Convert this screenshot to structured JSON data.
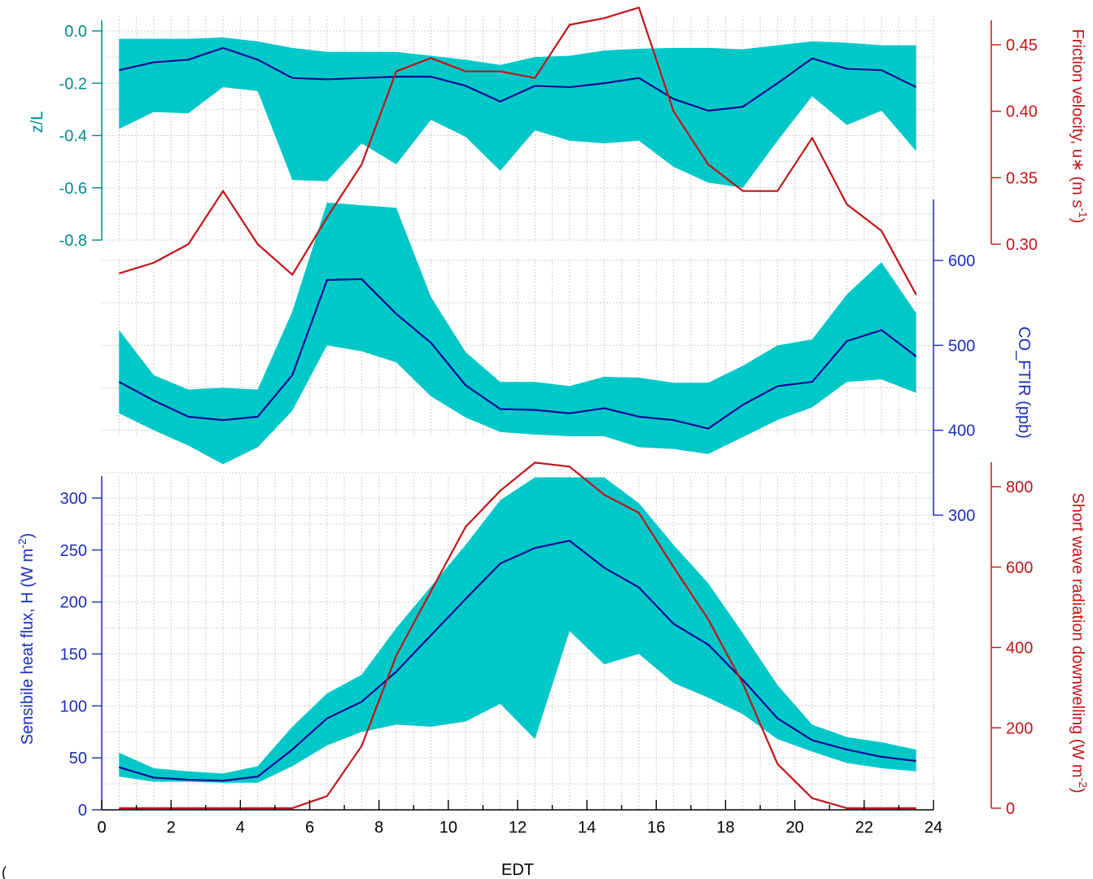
{
  "chart_data": [
    {
      "id": "zl_panel",
      "type": "line",
      "title": "",
      "xlabel": "EDT",
      "xlim": [
        0,
        24
      ],
      "left_axis": {
        "label": "z/L",
        "ylim": [
          -0.8,
          0.05
        ],
        "ticks": [
          0.0,
          -0.2,
          -0.4,
          -0.6,
          -0.8
        ],
        "tick_labels": [
          "0.0",
          "-0.2",
          "-0.4",
          "-0.6",
          "-0.8"
        ],
        "color": "#008c8c"
      },
      "right_axis": {
        "label": "Friction velocity, u* (m s⁻¹)",
        "label_main": "Friction velocity, u∗ (m s",
        "label_sup": "-1",
        "label_end": ")",
        "ylim": [
          0.262,
          0.48
        ],
        "ticks": [
          0.3,
          0.35,
          0.4,
          0.45
        ],
        "tick_labels": [
          "0.30",
          "0.35",
          "0.40",
          "0.45"
        ],
        "color": "#c0161a"
      },
      "x": [
        0.5,
        1.5,
        2.5,
        3.5,
        4.5,
        5.5,
        6.5,
        7.5,
        8.5,
        9.5,
        10.5,
        11.5,
        12.5,
        13.5,
        14.5,
        15.5,
        16.5,
        17.5,
        18.5,
        19.5,
        20.5,
        21.5,
        22.5,
        23.5
      ],
      "band": {
        "axis": "left",
        "color": "#00c8c8",
        "upper": [
          -0.03,
          -0.03,
          -0.03,
          -0.025,
          -0.04,
          -0.065,
          -0.08,
          -0.08,
          -0.08,
          -0.095,
          -0.11,
          -0.13,
          -0.1,
          -0.095,
          -0.075,
          -0.068,
          -0.065,
          -0.065,
          -0.07,
          -0.055,
          -0.04,
          -0.045,
          -0.055,
          -0.055
        ],
        "lower": [
          -0.375,
          -0.31,
          -0.315,
          -0.215,
          -0.23,
          -0.57,
          -0.575,
          -0.43,
          -0.51,
          -0.34,
          -0.405,
          -0.535,
          -0.38,
          -0.42,
          -0.43,
          -0.42,
          -0.52,
          -0.58,
          -0.6,
          -0.42,
          -0.25,
          -0.36,
          -0.305,
          -0.46
        ]
      },
      "series": [
        {
          "axis": "left",
          "color": "#0a0a96",
          "values": [
            -0.15,
            -0.12,
            -0.11,
            -0.065,
            -0.11,
            -0.18,
            -0.185,
            -0.18,
            -0.175,
            -0.175,
            -0.21,
            -0.27,
            -0.21,
            -0.215,
            -0.2,
            -0.18,
            -0.26,
            -0.305,
            -0.29,
            -0.2,
            -0.105,
            -0.145,
            -0.15,
            -0.215
          ]
        },
        {
          "axis": "right",
          "color": "#c0161a",
          "values": [
            0.278,
            0.286,
            0.3,
            0.34,
            0.3,
            0.277,
            0.32,
            0.36,
            0.43,
            0.44,
            0.43,
            0.43,
            0.425,
            0.465,
            0.47,
            0.478,
            0.4,
            0.36,
            0.34,
            0.34,
            0.38,
            0.33,
            0.31,
            0.262
          ]
        }
      ]
    },
    {
      "id": "co_panel",
      "type": "line",
      "title": "",
      "xlabel": "EDT",
      "xlim": [
        0,
        24
      ],
      "right_axis": {
        "label": "CO_FTIR (ppb)",
        "ylim": [
          300,
          650
        ],
        "ticks": [
          300,
          400,
          500,
          600
        ],
        "tick_labels": [
          "300",
          "400",
          "500",
          "600"
        ],
        "color": "#1a2fb8"
      },
      "x": [
        0.5,
        1.5,
        2.5,
        3.5,
        4.5,
        5.5,
        6.5,
        7.5,
        8.5,
        9.5,
        10.5,
        11.5,
        12.5,
        13.5,
        14.5,
        15.5,
        16.5,
        17.5,
        18.5,
        19.5,
        20.5,
        21.5,
        22.5,
        23.5
      ],
      "band": {
        "axis": "right",
        "color": "#00c8c8",
        "upper": [
          518,
          465,
          448,
          450,
          448,
          540,
          668,
          665,
          662,
          557,
          492,
          457,
          457,
          452,
          463,
          462,
          456,
          456,
          476,
          500,
          507,
          560,
          598,
          538
        ],
        "lower": [
          420,
          400,
          382,
          360,
          380,
          423,
          500,
          493,
          480,
          440,
          415,
          398,
          395,
          393,
          393,
          380,
          378,
          372,
          392,
          412,
          427,
          457,
          460,
          444
        ]
      },
      "series": [
        {
          "axis": "right",
          "color": "#0a0a96",
          "values": [
            457,
            435,
            416,
            412,
            416,
            465,
            577,
            578,
            537,
            503,
            453,
            425,
            424,
            420,
            426,
            416,
            412,
            402,
            430,
            452,
            457,
            505,
            518,
            487
          ]
        }
      ]
    },
    {
      "id": "h_panel",
      "type": "line",
      "title": "",
      "xlabel": "EDT",
      "xlim": [
        0,
        24
      ],
      "x_ticks": [
        0,
        2,
        4,
        6,
        8,
        10,
        12,
        14,
        16,
        18,
        20,
        22,
        24
      ],
      "x_tick_labels": [
        "0",
        "2",
        "4",
        "6",
        "8",
        "10",
        "12",
        "14",
        "16",
        "18",
        "20",
        "22",
        "24"
      ],
      "left_axis": {
        "label": "Sensibile heat flux, H (W m⁻²)",
        "label_main": "Sensibile heat flux, H (W m",
        "label_sup": "-2",
        "label_end": ")",
        "ylim": [
          0,
          320
        ],
        "ticks": [
          0,
          50,
          100,
          150,
          200,
          250,
          300
        ],
        "tick_labels": [
          "0",
          "50",
          "100",
          "150",
          "200",
          "250",
          "300"
        ],
        "color": "#1a2fb8"
      },
      "right_axis": {
        "label": "Short wave radiation downwelling (W m⁻²)",
        "label_main": "Short wave radiation downwelling (W m",
        "label_sup": "-2",
        "label_end": ")",
        "ylim": [
          0,
          870
        ],
        "ticks": [
          0,
          200,
          400,
          600,
          800
        ],
        "tick_labels": [
          "0",
          "200",
          "400",
          "600",
          "800"
        ],
        "color": "#c0161a"
      },
      "x": [
        0.5,
        1.5,
        2.5,
        3.5,
        4.5,
        5.5,
        6.5,
        7.5,
        8.5,
        9.5,
        10.5,
        11.5,
        12.5,
        13.5,
        14.5,
        15.5,
        16.5,
        17.5,
        18.5,
        19.5,
        20.5,
        21.5,
        22.5,
        23.5
      ],
      "band": {
        "axis": "left",
        "color": "#00c8c8",
        "upper": [
          55,
          40,
          37,
          35,
          42,
          80,
          112,
          130,
          175,
          215,
          255,
          298,
          320,
          320,
          320,
          295,
          255,
          218,
          170,
          120,
          82,
          70,
          65,
          58
        ],
        "lower": [
          32,
          27,
          27,
          26,
          26,
          42,
          62,
          75,
          82,
          80,
          85,
          102,
          68,
          172,
          140,
          150,
          122,
          108,
          92,
          68,
          56,
          45,
          40,
          37
        ]
      },
      "series": [
        {
          "axis": "left",
          "color": "#0a0a96",
          "values": [
            41,
            31,
            29,
            28,
            32,
            58,
            88,
            104,
            133,
            168,
            203,
            237,
            252,
            259,
            233,
            214,
            179,
            159,
            125,
            88,
            67,
            58,
            51,
            47
          ]
        },
        {
          "axis": "right",
          "color": "#c0161a",
          "values": [
            0,
            0,
            0,
            0,
            0,
            0,
            30,
            155,
            380,
            540,
            700,
            790,
            860,
            850,
            780,
            735,
            600,
            470,
            310,
            110,
            25,
            0,
            0,
            0
          ]
        }
      ]
    }
  ],
  "stray_text": "("
}
